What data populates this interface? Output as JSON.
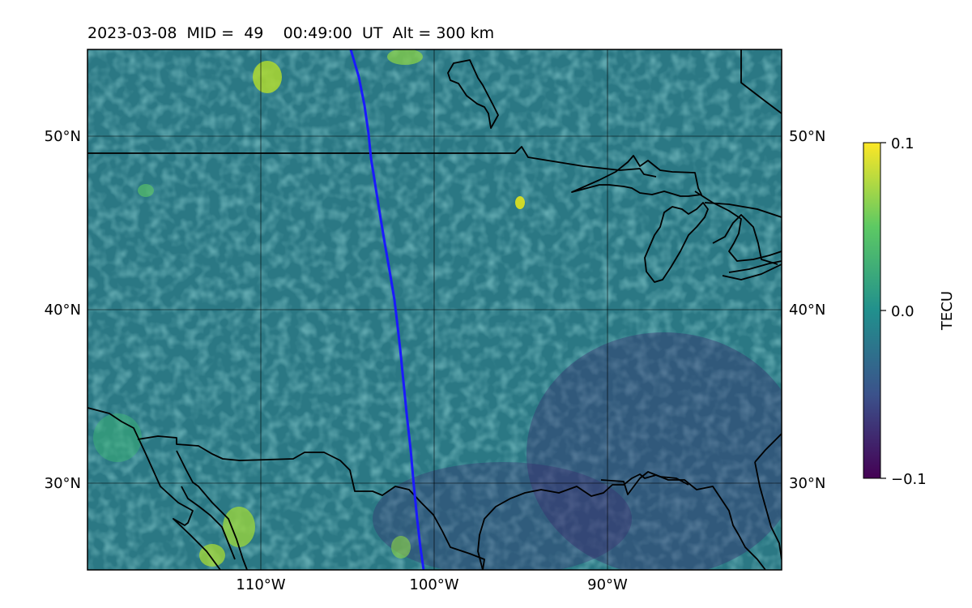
{
  "title": {
    "date": "2023-03-08",
    "mid_label": "MID =",
    "mid_value": "49",
    "time": "00:49:00",
    "time_unit": "UT",
    "alt_label": "Alt =",
    "alt_value": "300",
    "alt_unit": "km"
  },
  "map": {
    "lon_range": [
      -120,
      -80
    ],
    "lat_range": [
      25,
      55
    ],
    "lon_ticks": [
      "110°W",
      "100°W",
      "90°W"
    ],
    "lat_ticks_left": [
      "30°N",
      "40°N",
      "50°N"
    ],
    "lat_ticks_right": [
      "30°N",
      "40°N",
      "50°N"
    ],
    "grid": true,
    "field_cmap": "viridis",
    "coastline_color": "#000000",
    "track_color": "#1a1aff"
  },
  "colorbar": {
    "label": "TECU",
    "tick_labels": [
      "0.1",
      "0.0",
      "−0.1"
    ],
    "range": [
      -0.1,
      0.1
    ]
  }
}
